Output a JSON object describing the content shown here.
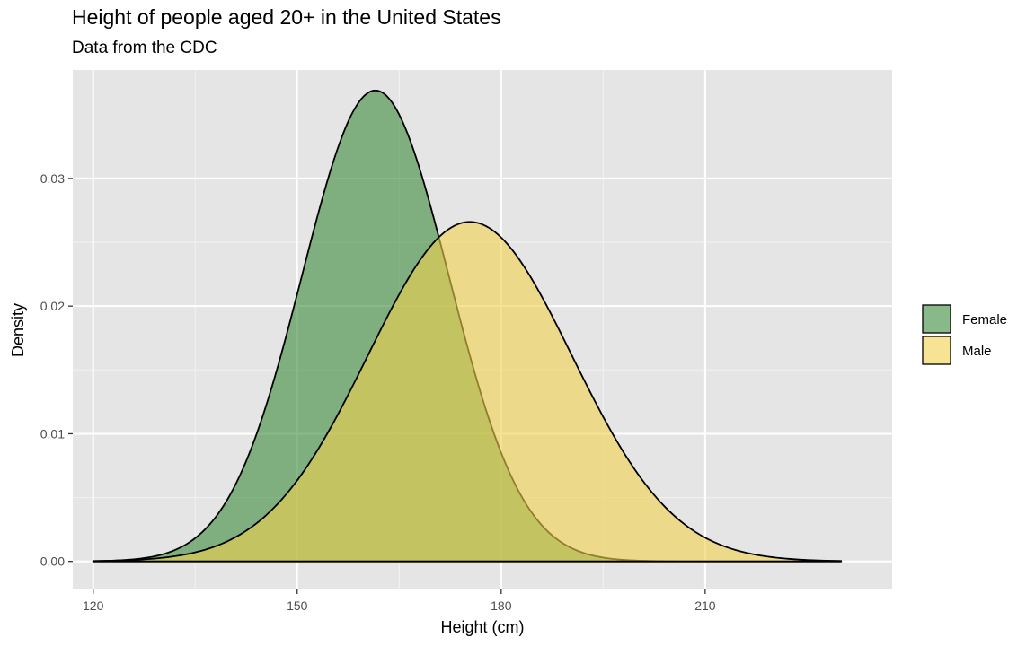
{
  "chart_data": {
    "type": "area",
    "title": "Height of people aged 20+ in the United States",
    "subtitle": "Data from the CDC",
    "xlabel": "Height (cm)",
    "ylabel": "Density",
    "xlim": [
      117,
      237.5
    ],
    "ylim": [
      -0.0022,
      0.0385
    ],
    "x_ticks": [
      120,
      150,
      180,
      210
    ],
    "y_ticks": [
      0.0,
      0.01,
      0.02,
      0.03
    ],
    "y_tick_labels": [
      "0.00",
      "0.01",
      "0.02",
      "0.03"
    ],
    "grid": true,
    "legend_position": "right",
    "x_range": [
      120,
      230
    ],
    "series": [
      {
        "name": "Female",
        "color": "#3b8a3b",
        "mean_cm": 161.5,
        "sd_cm": 10.8,
        "peak_density": 0.0369
      },
      {
        "name": "Male",
        "color": "#f0d04c",
        "mean_cm": 175.4,
        "sd_cm": 15.0,
        "peak_density": 0.0266
      }
    ]
  }
}
